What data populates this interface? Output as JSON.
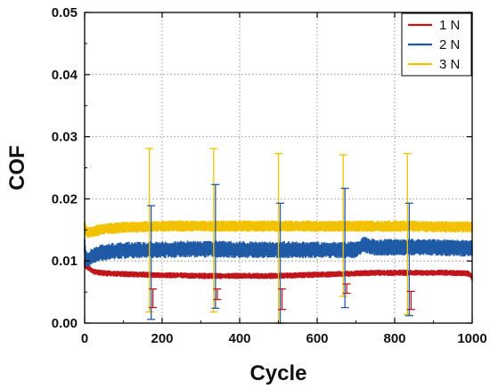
{
  "chart_data": {
    "type": "line",
    "xlabel": "Cycle",
    "ylabel": "COF",
    "xlim": [
      0,
      1000
    ],
    "ylim": [
      0,
      0.05
    ],
    "xticks": [
      0,
      200,
      400,
      600,
      800,
      1000
    ],
    "xtick_labels": [
      "0",
      "200",
      "400",
      "600",
      "800",
      "1000"
    ],
    "yticks": [
      0,
      0.01,
      0.02,
      0.03,
      0.04,
      0.05
    ],
    "ytick_labels": [
      "0.00",
      "0.01",
      "0.02",
      "0.03",
      "0.04",
      "0.05"
    ],
    "grid": true,
    "legend_position": "top-right",
    "series": [
      {
        "name": "1 N",
        "color": "#c0161b",
        "band": 0.0006,
        "x": [
          0,
          3,
          8,
          15,
          25,
          40,
          60,
          100,
          150,
          200,
          250,
          300,
          350,
          400,
          450,
          500,
          550,
          600,
          650,
          700,
          750,
          800,
          850,
          900,
          950,
          990,
          995,
          1000
        ],
        "y": [
          0.0095,
          0.0092,
          0.0089,
          0.0086,
          0.0083,
          0.0081,
          0.008,
          0.0079,
          0.0078,
          0.0077,
          0.0077,
          0.0076,
          0.0076,
          0.0076,
          0.0076,
          0.0076,
          0.0077,
          0.0078,
          0.0079,
          0.008,
          0.0081,
          0.0081,
          0.0081,
          0.0081,
          0.0081,
          0.008,
          0.0078,
          0.0072
        ]
      },
      {
        "name": "2 N",
        "color": "#1f5aa6",
        "band": 0.0016,
        "x": [
          0,
          3,
          8,
          15,
          25,
          40,
          60,
          100,
          150,
          200,
          250,
          300,
          350,
          400,
          450,
          500,
          550,
          600,
          650,
          700,
          720,
          750,
          800,
          850,
          900,
          950,
          1000
        ],
        "y": [
          0.0125,
          0.0105,
          0.0102,
          0.0106,
          0.011,
          0.0113,
          0.0115,
          0.0117,
          0.0118,
          0.0118,
          0.0119,
          0.0119,
          0.0119,
          0.0118,
          0.0118,
          0.0118,
          0.0118,
          0.0118,
          0.0118,
          0.0118,
          0.0126,
          0.0122,
          0.0122,
          0.0122,
          0.0122,
          0.0121,
          0.012
        ]
      },
      {
        "name": "3 N",
        "color": "#f2c200",
        "band": 0.0011,
        "x": [
          0,
          3,
          8,
          15,
          25,
          40,
          60,
          100,
          150,
          200,
          250,
          300,
          350,
          400,
          450,
          500,
          550,
          600,
          650,
          700,
          750,
          800,
          850,
          900,
          950,
          1000
        ],
        "y": [
          0.0155,
          0.0148,
          0.0146,
          0.0146,
          0.0148,
          0.015,
          0.0152,
          0.0154,
          0.0155,
          0.0156,
          0.0156,
          0.0156,
          0.0156,
          0.0156,
          0.0156,
          0.0156,
          0.0156,
          0.0156,
          0.0156,
          0.0156,
          0.0156,
          0.0156,
          0.0156,
          0.0155,
          0.0155,
          0.0155
        ]
      }
    ],
    "error_bars": [
      {
        "series": "3 N",
        "x": 167,
        "low": 0.0018,
        "high": 0.0281
      },
      {
        "series": "3 N",
        "x": 333,
        "low": 0.0018,
        "high": 0.0281
      },
      {
        "series": "3 N",
        "x": 500,
        "low": 0.0,
        "high": 0.0273
      },
      {
        "series": "3 N",
        "x": 667,
        "low": 0.0043,
        "high": 0.0271
      },
      {
        "series": "3 N",
        "x": 833,
        "low": 0.0014,
        "high": 0.0273
      },
      {
        "series": "2 N",
        "x": 167,
        "low": 0.0006,
        "high": 0.0189
      },
      {
        "series": "2 N",
        "x": 333,
        "low": 0.0024,
        "high": 0.0223
      },
      {
        "series": "2 N",
        "x": 500,
        "low": 0.0,
        "high": 0.0193
      },
      {
        "series": "2 N",
        "x": 667,
        "low": 0.0025,
        "high": 0.0217
      },
      {
        "series": "2 N",
        "x": 833,
        "low": 0.0012,
        "high": 0.0193
      },
      {
        "series": "1 N",
        "x": 167,
        "low": 0.0025,
        "high": 0.0055
      },
      {
        "series": "1 N",
        "x": 333,
        "low": 0.0038,
        "high": 0.0055
      },
      {
        "series": "1 N",
        "x": 500,
        "low": 0.0022,
        "high": 0.0055
      },
      {
        "series": "1 N",
        "x": 667,
        "low": 0.0048,
        "high": 0.0063
      },
      {
        "series": "1 N",
        "x": 833,
        "low": 0.0022,
        "high": 0.0051
      }
    ]
  }
}
